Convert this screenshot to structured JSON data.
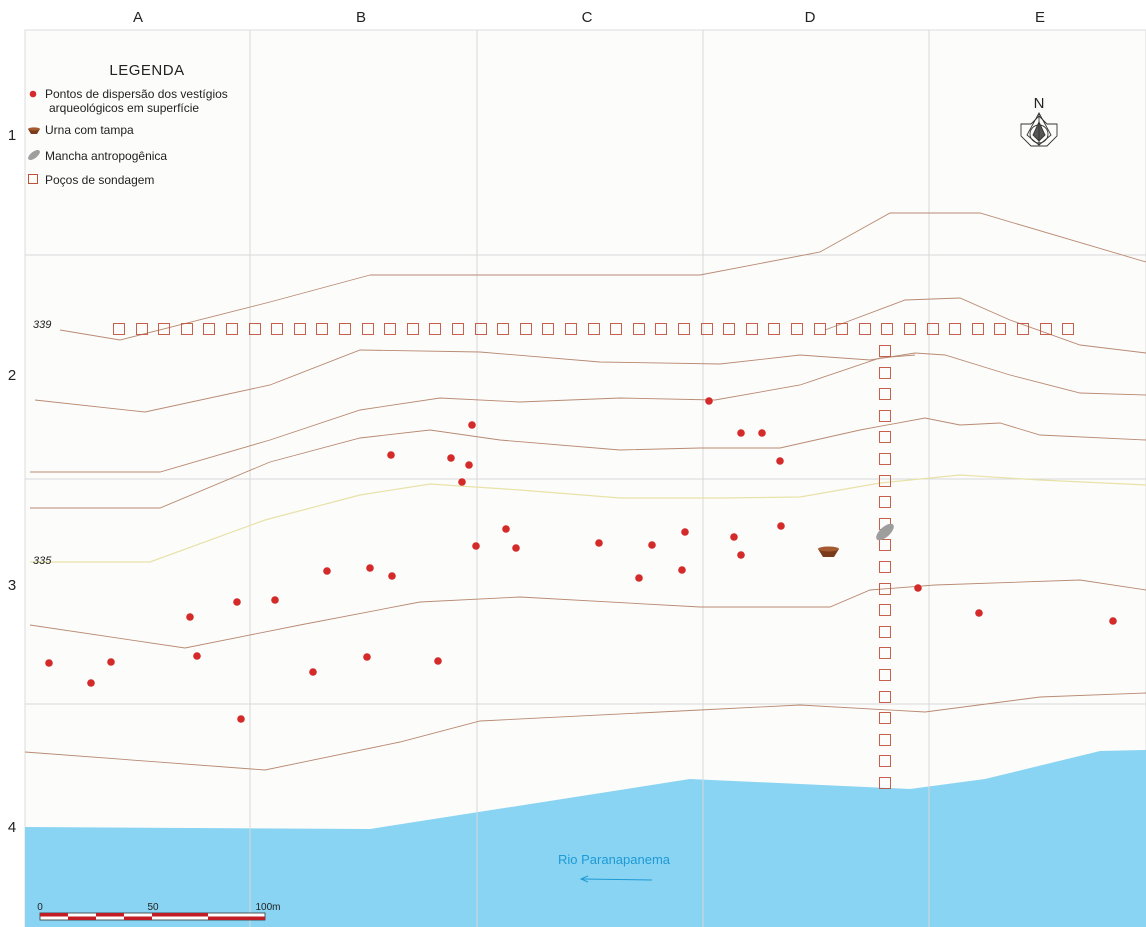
{
  "grid": {
    "columns": [
      "A",
      "B",
      "C",
      "D",
      "E"
    ],
    "rows": [
      "1",
      "2",
      "3",
      "4"
    ]
  },
  "legend": {
    "title": "LEGENDA",
    "items": [
      {
        "icon": "red-dot-icon",
        "label_line1": "Pontos de dispersão dos vestígios",
        "label_line2": "arqueológicos em superfície"
      },
      {
        "icon": "urn-icon",
        "label_line1": "Urna com tampa"
      },
      {
        "icon": "anthropogenic-stain-icon",
        "label_line1": "Mancha antropogênica"
      },
      {
        "icon": "test-pit-icon",
        "label_line1": "Poços de sondagem"
      }
    ]
  },
  "north_arrow": {
    "label": "N"
  },
  "contours": {
    "label_upper": "339",
    "label_lower": "335"
  },
  "river": {
    "label": "Rio Paranapanema"
  },
  "scale_bar": {
    "tick_0": "0",
    "tick_50": "50",
    "tick_100": "100m"
  },
  "colors": {
    "point": "#d42a2a",
    "pit": "#c0503a",
    "contour": "#b98a72",
    "contour_highlight": "#e8e2a8",
    "river": "#89d4f2",
    "grid": "#d8d8d8",
    "background": "#fcfcfb",
    "urn": "#7a3a1c",
    "stain": "#9e9e9e",
    "scale_red": "#c21d24"
  }
}
